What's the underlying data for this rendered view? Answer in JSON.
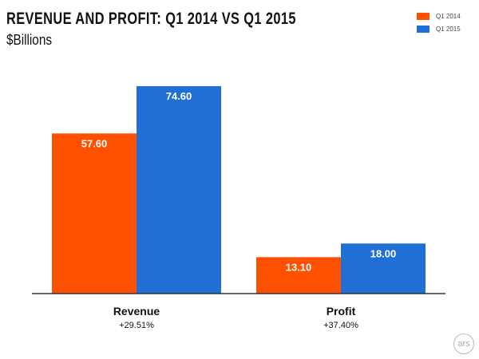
{
  "chart_data": {
    "type": "bar",
    "title": "REVENUE AND PROFIT: Q1 2014 VS Q1 2015",
    "subtitle": "$Billions",
    "categories": [
      "Revenue",
      "Profit"
    ],
    "category_notes": [
      "+29.51%",
      "+37.40%"
    ],
    "series": [
      {
        "name": "Q1 2014",
        "color": "#ff5000",
        "values": [
          57.6,
          13.1
        ],
        "labels": [
          "57.60",
          "13.10"
        ]
      },
      {
        "name": "Q1 2015",
        "color": "#1f6fd6",
        "values": [
          74.6,
          18.0
        ],
        "labels": [
          "74.60",
          "18.00"
        ]
      }
    ],
    "ylim": [
      0,
      80
    ],
    "grid": false,
    "legend": "top-right"
  },
  "logo": "ars"
}
